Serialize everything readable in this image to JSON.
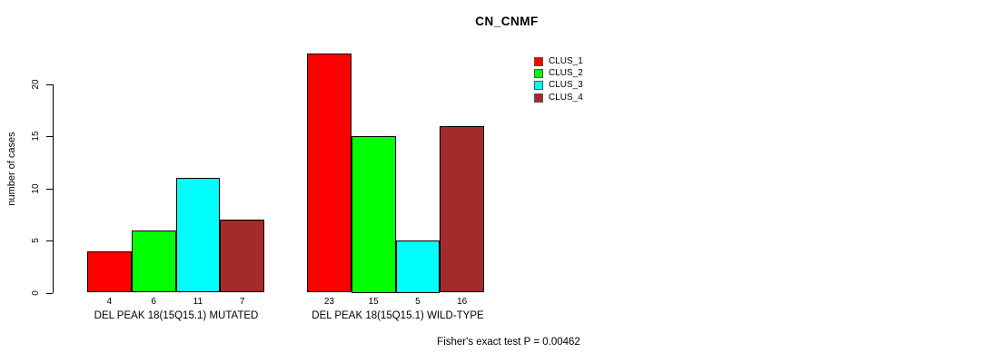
{
  "chart_data": {
    "type": "bar",
    "title": "CN_CNMF",
    "ylabel": "number of cases",
    "xlabel": "",
    "ylim": [
      0,
      23
    ],
    "yticks": [
      0,
      5,
      10,
      15,
      20
    ],
    "grid": false,
    "legend_position": "top-right-inside",
    "bar_value_labels_shown": true,
    "categories": [
      "DEL PEAK 18(15Q15.1) MUTATED",
      "DEL PEAK 18(15Q15.1) WILD-TYPE"
    ],
    "series": [
      {
        "name": "CLUS_1",
        "color": "#ff0000",
        "values": [
          4,
          23
        ]
      },
      {
        "name": "CLUS_2",
        "color": "#00ff00",
        "values": [
          6,
          15
        ]
      },
      {
        "name": "CLUS_3",
        "color": "#00ffff",
        "values": [
          11,
          5
        ]
      },
      {
        "name": "CLUS_4",
        "color": "#a52a2a",
        "values": [
          7,
          16
        ]
      }
    ],
    "annotation": "Fisher's exact test P = 0.00462"
  }
}
